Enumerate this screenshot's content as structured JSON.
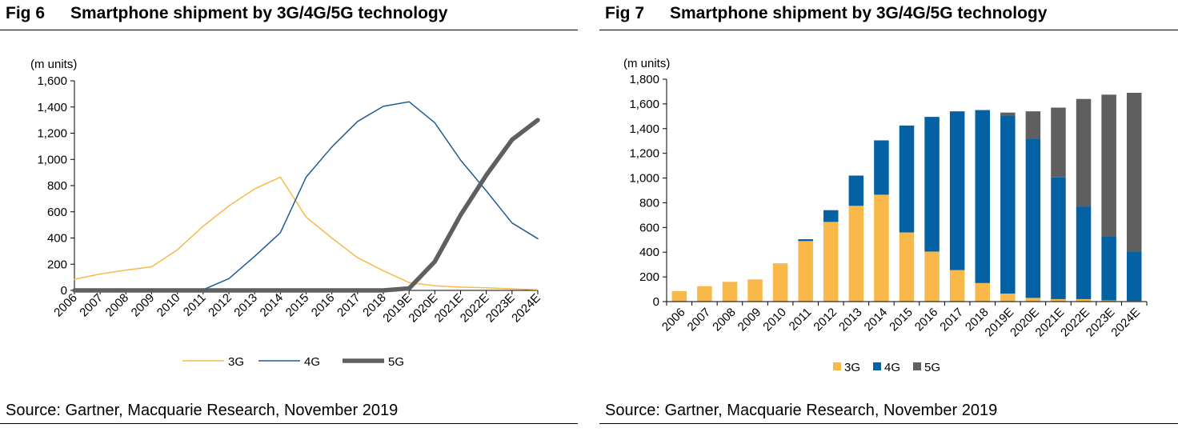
{
  "figures": [
    {
      "fig_label": "Fig 6",
      "title": "Smartphone shipment by 3G/4G/5G technology",
      "source": "Source: Gartner, Macquarie Research, November 2019"
    },
    {
      "fig_label": "Fig 7",
      "title": "Smartphone shipment by 3G/4G/5G technology",
      "source": "Source: Gartner, Macquarie Research, November 2019"
    }
  ],
  "chart_data": [
    {
      "type": "line",
      "ylabel": "(m units)",
      "ylim": [
        0,
        1600
      ],
      "yticks": [
        "0",
        "200",
        "400",
        "600",
        "800",
        "1,000",
        "1,200",
        "1,400",
        "1,600"
      ],
      "ytick_values": [
        0,
        200,
        400,
        600,
        800,
        1000,
        1200,
        1400,
        1600
      ],
      "categories": [
        "2006",
        "2007",
        "2008",
        "2009",
        "2010",
        "2011",
        "2012",
        "2013",
        "2014",
        "2015",
        "2016",
        "2017",
        "2018",
        "2019E",
        "2020E",
        "2021E",
        "2022E",
        "2023E",
        "2024E"
      ],
      "grid": false,
      "legend": "bottom",
      "series": [
        {
          "name": "3G",
          "color": "#F9B94A",
          "width": 1.5,
          "values": [
            85,
            125,
            155,
            180,
            310,
            490,
            645,
            775,
            865,
            560,
            400,
            250,
            150,
            60,
            35,
            25,
            20,
            12,
            5
          ]
        },
        {
          "name": "4G",
          "color": "#1F5B94",
          "width": 1.5,
          "values": [
            0,
            0,
            0,
            0,
            0,
            5,
            90,
            260,
            440,
            865,
            1095,
            1290,
            1405,
            1440,
            1280,
            995,
            760,
            515,
            395
          ]
        },
        {
          "name": "5G",
          "color": "#5F5F5F",
          "width": 5.5,
          "values": [
            0,
            0,
            0,
            0,
            0,
            0,
            0,
            0,
            0,
            0,
            0,
            0,
            0,
            15,
            220,
            575,
            880,
            1150,
            1300
          ]
        }
      ]
    },
    {
      "type": "bar",
      "stacked": true,
      "ylabel": "(m units)",
      "ylim": [
        0,
        1800
      ],
      "yticks": [
        "0",
        "200",
        "400",
        "600",
        "800",
        "1,000",
        "1,200",
        "1,400",
        "1,600",
        "1,800"
      ],
      "ytick_values": [
        0,
        200,
        400,
        600,
        800,
        1000,
        1200,
        1400,
        1600,
        1800
      ],
      "categories": [
        "2006",
        "2007",
        "2008",
        "2009",
        "2010",
        "2011",
        "2012",
        "2013",
        "2014",
        "2015",
        "2016",
        "2017",
        "2018",
        "2019E",
        "2020E",
        "2021E",
        "2022E",
        "2023E",
        "2024E"
      ],
      "grid": false,
      "legend": "bottom",
      "series": [
        {
          "name": "3G",
          "color": "#F9B94A",
          "values": [
            85,
            125,
            160,
            180,
            310,
            490,
            645,
            775,
            865,
            560,
            405,
            255,
            150,
            65,
            30,
            20,
            20,
            10,
            5
          ]
        },
        {
          "name": "4G",
          "color": "#0461A3",
          "values": [
            0,
            0,
            0,
            0,
            0,
            15,
            95,
            245,
            440,
            865,
            1090,
            1285,
            1400,
            1440,
            1290,
            985,
            750,
            520,
            400
          ]
        },
        {
          "name": "5G",
          "color": "#5F5F5F",
          "values": [
            0,
            0,
            0,
            0,
            0,
            0,
            0,
            0,
            0,
            0,
            0,
            0,
            0,
            25,
            220,
            565,
            870,
            1145,
            1285
          ]
        }
      ]
    }
  ]
}
